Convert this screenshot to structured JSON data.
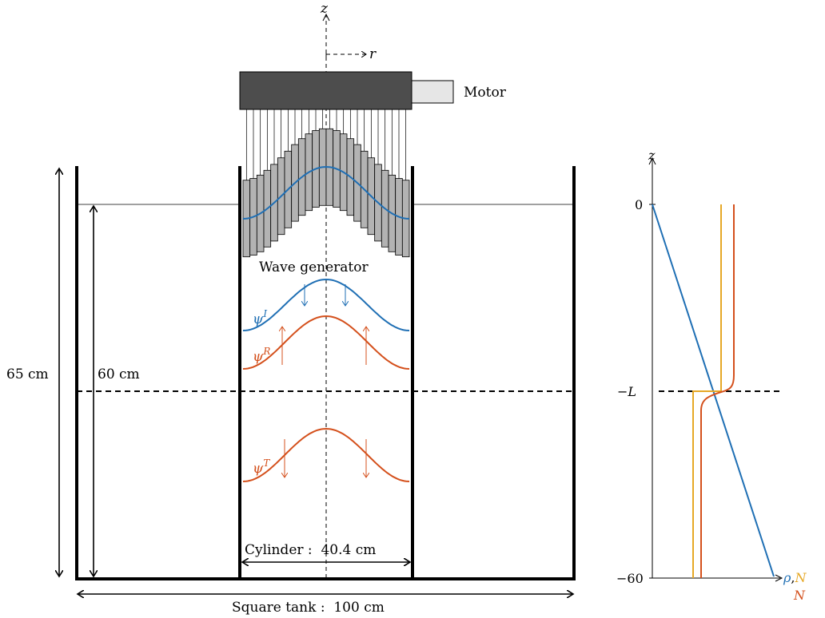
{
  "labels": {
    "axis_z": "z",
    "axis_r": "r",
    "motor": "Motor",
    "wave_generator": "Wave generator",
    "tank_height": "65 cm",
    "water_depth": "60 cm",
    "cylinder": "Cylinder :  40.4 cm",
    "square_tank": "Square tank :  100 cm",
    "psi": "ψ",
    "psi_I_sup": "I",
    "psi_R_sup": "R",
    "psi_T_sup": "T"
  },
  "profile": {
    "axis_z": "z",
    "tick_0": "0",
    "tick_L": "−L",
    "tick_60": "−60",
    "legend_rho": "ρ",
    "legend_comma": ",",
    "legend_N_yellow": "N",
    "legend_N_red": "N"
  },
  "colors": {
    "blue": "#1f6fb4",
    "orange": "#d4501c",
    "yellow": "#e6a826",
    "motor_fill": "#4d4d4d",
    "motor_shaft": "#e6e6e6",
    "plate_fill": "#b3b3b3"
  }
}
